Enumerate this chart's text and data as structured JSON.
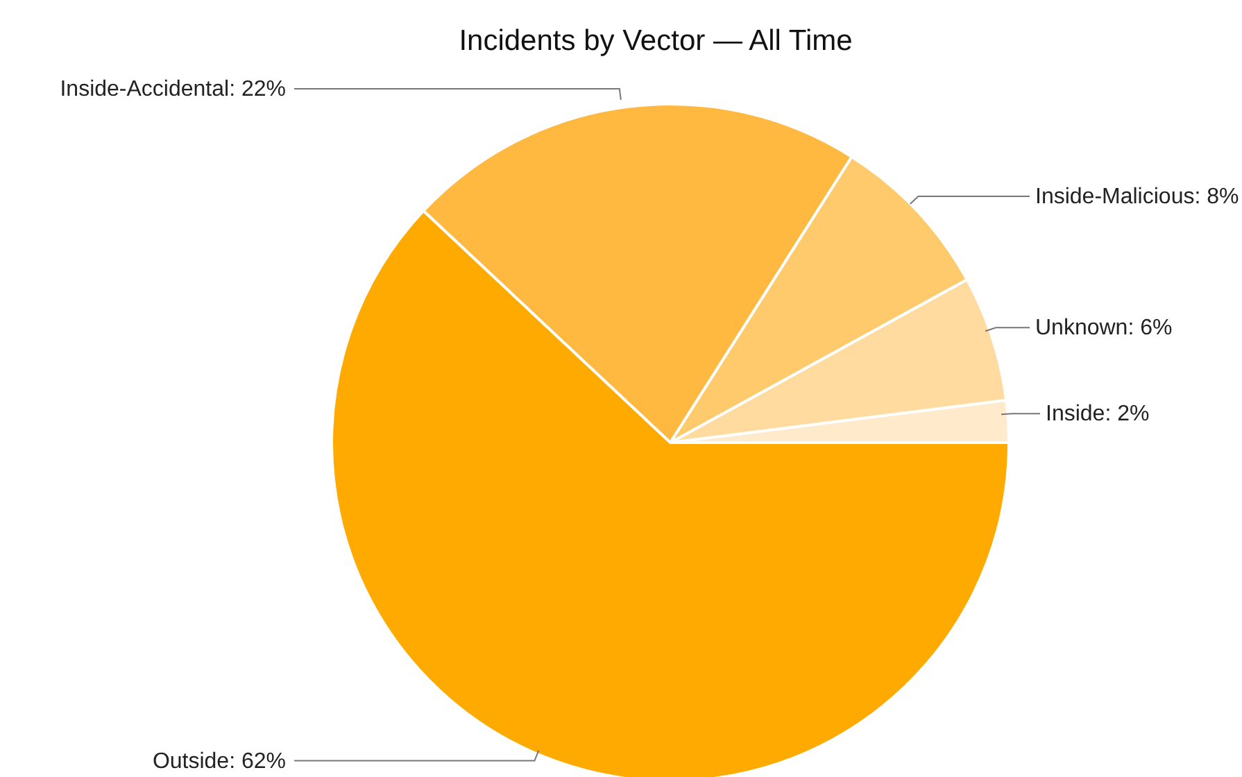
{
  "chart_data": {
    "type": "pie",
    "title": "Incidents by Vector — All Time",
    "categories": [
      "Inside",
      "Unknown",
      "Inside-Malicious",
      "Inside-Accidental",
      "Outside"
    ],
    "values": [
      2,
      6,
      8,
      22,
      62
    ],
    "colors": [
      "#ffebcc",
      "#ffdba0",
      "#ffca6c",
      "#ffb940",
      "#ffaa00"
    ],
    "value_labels": [
      "2%",
      "6%",
      "8%",
      "22%",
      "62%"
    ],
    "legend": false
  }
}
